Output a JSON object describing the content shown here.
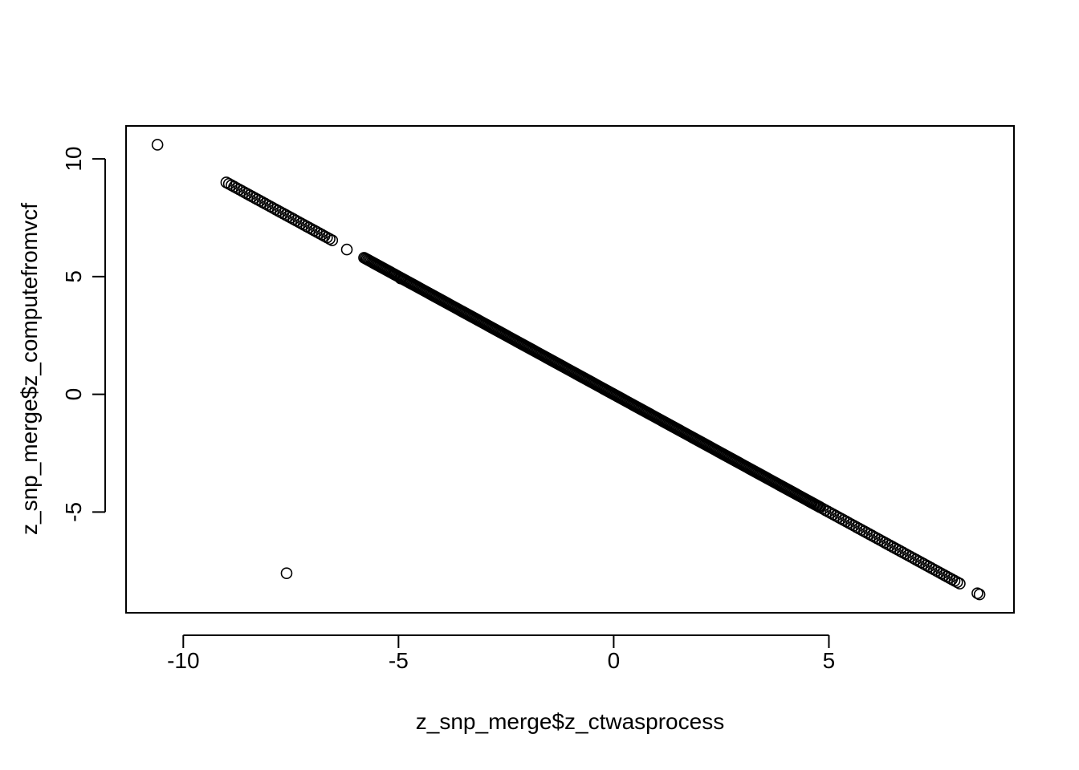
{
  "chart_data": {
    "type": "scatter",
    "title": "",
    "xlabel": "z_snp_merge$z_ctwasprocess",
    "ylabel": "z_snp_merge$z_computefromvcf",
    "xlim": [
      -11.33,
      9.3
    ],
    "ylim": [
      -9.28,
      11.4
    ],
    "xticks": [
      -10,
      -5,
      0,
      5
    ],
    "xtick_labels": [
      "-10",
      "-5",
      "0",
      "5"
    ],
    "yticks": [
      -5,
      0,
      5,
      10
    ],
    "ytick_labels": [
      "-5",
      "0",
      "5",
      "10"
    ],
    "grid": false,
    "legend": "none",
    "marker": "open-circle",
    "color": "#000000",
    "trend_segments": [
      {
        "x_start": -9.0,
        "x_end": -6.5,
        "step": 0.06
      },
      {
        "x_start": -5.8,
        "x_end": 4.8,
        "step": 0.03
      },
      {
        "x_start": 4.8,
        "x_end": 8.05,
        "step": 0.06
      }
    ],
    "points": [
      {
        "x": -10.6,
        "y": 10.6
      },
      {
        "x": -7.6,
        "y": -7.6
      },
      {
        "x": -6.2,
        "y": 6.15
      },
      {
        "x": -5.1,
        "y": 5.1
      },
      {
        "x": -4.95,
        "y": 4.92
      },
      {
        "x": 8.45,
        "y": -8.45
      },
      {
        "x": 8.5,
        "y": -8.5
      }
    ]
  }
}
